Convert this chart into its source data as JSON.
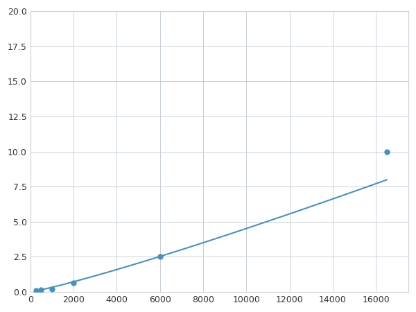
{
  "x": [
    250,
    500,
    1000,
    2000,
    6000,
    16500
  ],
  "y": [
    0.1,
    0.15,
    0.2,
    0.65,
    2.5,
    10.0
  ],
  "line_color": "#4a90b8",
  "marker_color": "#4a90b8",
  "marker_size": 5,
  "xlim": [
    0,
    17500
  ],
  "ylim": [
    0.0,
    20.0
  ],
  "xticks": [
    0,
    2000,
    4000,
    6000,
    8000,
    10000,
    12000,
    14000,
    16000
  ],
  "yticks": [
    0.0,
    2.5,
    5.0,
    7.5,
    10.0,
    12.5,
    15.0,
    17.5,
    20.0
  ],
  "grid_color": "#c8d0d8",
  "background_color": "#ffffff",
  "figsize": [
    6.0,
    4.5
  ],
  "dpi": 100
}
